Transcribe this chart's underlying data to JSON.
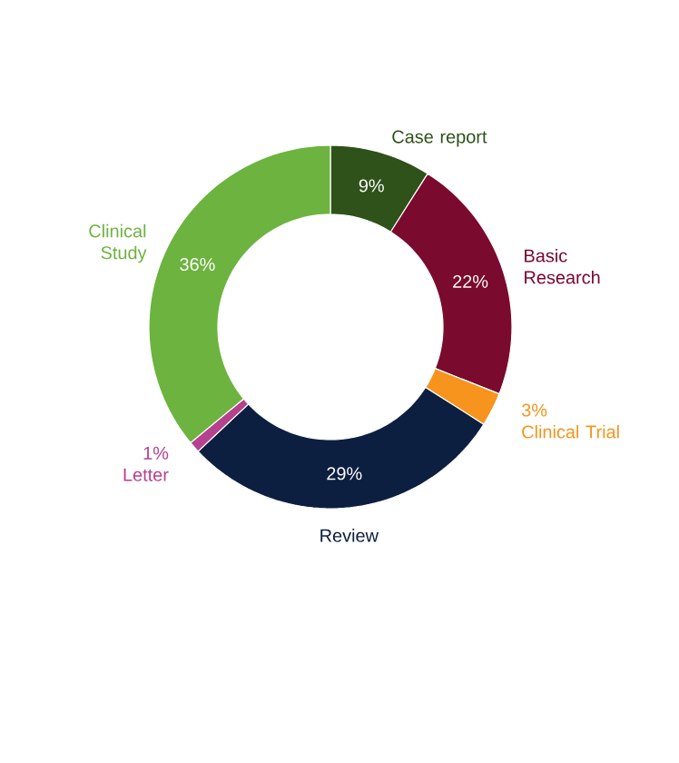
{
  "chart_data": {
    "type": "donut",
    "categories": [
      "Case report",
      "Basic Research",
      "Clinical Trial",
      "Review",
      "Letter",
      "Clinical Study"
    ],
    "values": [
      9,
      22,
      3,
      29,
      1,
      36
    ],
    "value_labels": [
      "9%",
      "22%",
      "3%",
      "29%",
      "1%",
      "36%"
    ],
    "colors": [
      "#2e5219",
      "#7a0a2e",
      "#f7941d",
      "#0d1f40",
      "#b5428f",
      "#6db33f"
    ]
  }
}
